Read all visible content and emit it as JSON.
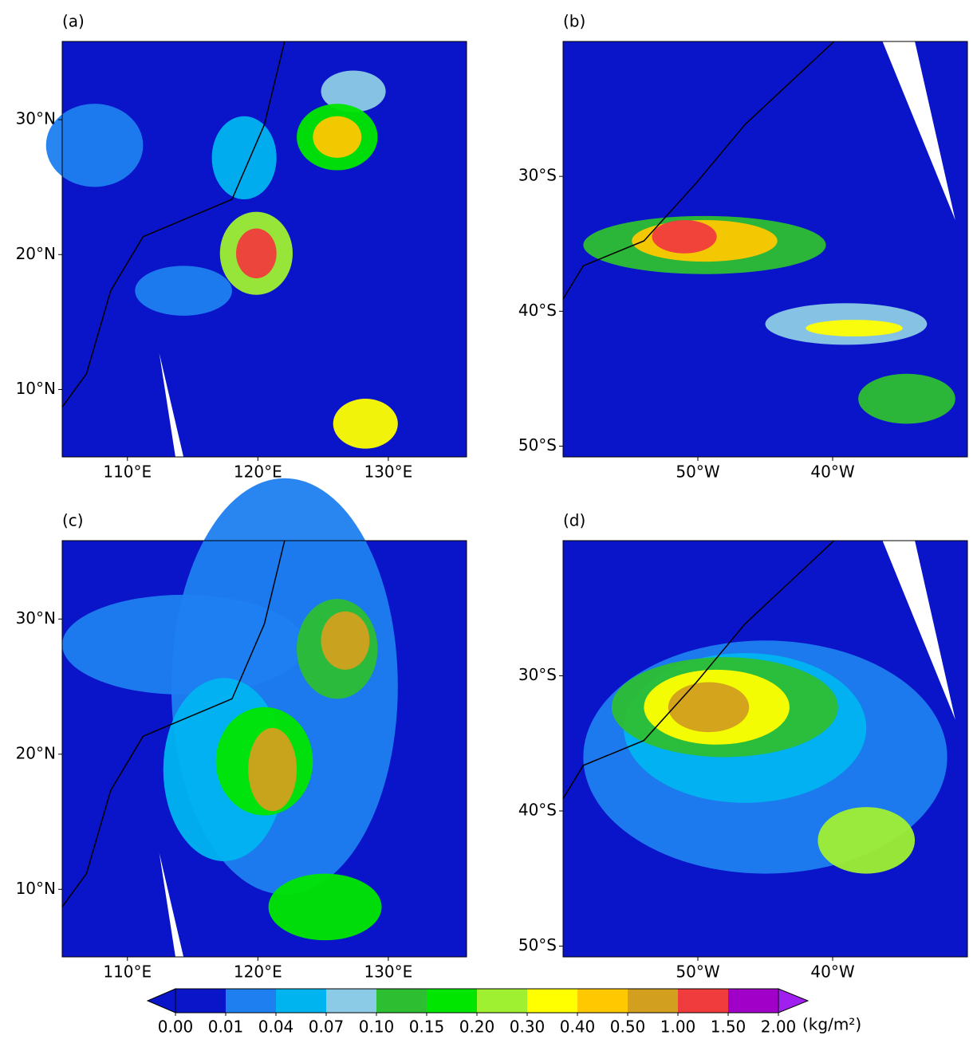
{
  "panels": [
    {
      "label": "(a)",
      "xlim": [
        105,
        136
      ],
      "ylim": [
        5,
        35.8
      ],
      "xticks": [
        {
          "value": 110,
          "label": "110°E"
        },
        {
          "value": 120,
          "label": "120°E"
        },
        {
          "value": 130,
          "label": "130°E"
        }
      ],
      "yticks": [
        {
          "value": 10,
          "label": "10°N"
        },
        {
          "value": 20,
          "label": "20°N"
        },
        {
          "value": 30,
          "label": "30°N"
        }
      ]
    },
    {
      "label": "(b)",
      "xlim": [
        -60,
        -30
      ],
      "ylim": [
        -50.8,
        -20
      ],
      "xticks": [
        {
          "value": -50,
          "label": "50°W"
        },
        {
          "value": -40,
          "label": "40°W"
        }
      ],
      "yticks": [
        {
          "value": -50,
          "label": "50°S"
        },
        {
          "value": -40,
          "label": "40°S"
        },
        {
          "value": -30,
          "label": "30°S"
        }
      ]
    },
    {
      "label": "(c)",
      "xlim": [
        105,
        136
      ],
      "ylim": [
        5,
        35.8
      ],
      "xticks": [
        {
          "value": 110,
          "label": "110°E"
        },
        {
          "value": 120,
          "label": "120°E"
        },
        {
          "value": 130,
          "label": "130°E"
        }
      ],
      "yticks": [
        {
          "value": 10,
          "label": "10°N"
        },
        {
          "value": 20,
          "label": "20°N"
        },
        {
          "value": 30,
          "label": "30°N"
        }
      ]
    },
    {
      "label": "(d)",
      "xlim": [
        -60,
        -30
      ],
      "ylim": [
        -50.8,
        -20
      ],
      "xticks": [
        {
          "value": -50,
          "label": "50°W"
        },
        {
          "value": -40,
          "label": "40°W"
        }
      ],
      "yticks": [
        {
          "value": -50,
          "label": "50°S"
        },
        {
          "value": -40,
          "label": "40°S"
        },
        {
          "value": -30,
          "label": "30°S"
        }
      ]
    }
  ],
  "colorbar": {
    "ticks": [
      {
        "value": 0,
        "label": "0.00"
      },
      {
        "value": 0.01,
        "label": "0.01"
      },
      {
        "value": 0.04,
        "label": "0.04"
      },
      {
        "value": 0.07,
        "label": "0.07"
      },
      {
        "value": 0.1,
        "label": "0.10"
      },
      {
        "value": 0.15,
        "label": "0.15"
      },
      {
        "value": 0.2,
        "label": "0.20"
      },
      {
        "value": 0.3,
        "label": "0.30"
      },
      {
        "value": 0.4,
        "label": "0.40"
      },
      {
        "value": 0.5,
        "label": "0.50"
      },
      {
        "value": 1,
        "label": "1.00"
      },
      {
        "value": 1.5,
        "label": "1.50"
      },
      {
        "value": 2,
        "label": "2.00"
      }
    ],
    "colors": [
      "#0a14c8",
      "#1e7ff0",
      "#00b4f0",
      "#8ccbe6",
      "#2dbe32",
      "#00e600",
      "#a0f032",
      "#ffff00",
      "#ffc800",
      "#d2a01e",
      "#f03c3c",
      "#a000c8"
    ],
    "under_color": "#0a14c8",
    "over_color": "#a020f0",
    "unit": "(kg/m²)"
  }
}
